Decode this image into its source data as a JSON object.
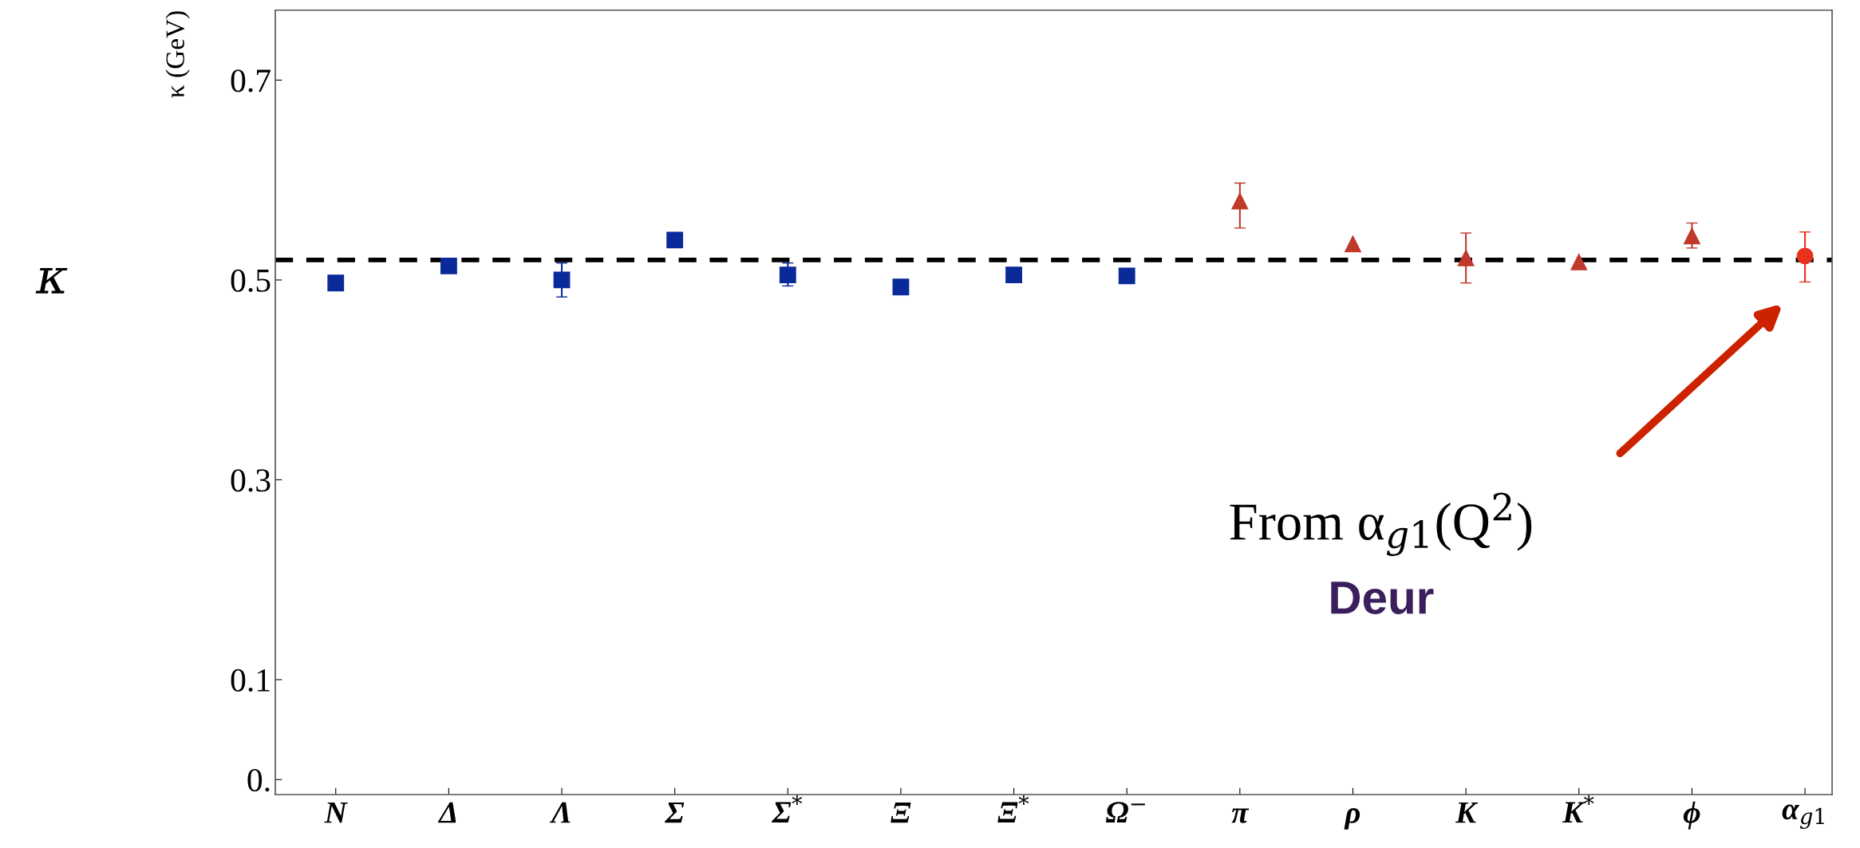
{
  "chart_data": {
    "type": "scatter",
    "ylabel": "κ (GeV)",
    "categories": [
      "N",
      "Δ",
      "Λ",
      "Σ",
      "Σ$^{*}$",
      "Ξ",
      "Ξ$^{*}$",
      "Ω$^{−}$",
      "π",
      "ρ",
      "K",
      "K$^{*}$",
      "ϕ",
      "α$_{g1}$"
    ],
    "series": [
      {
        "color": "#0a2a9a",
        "marker": "square",
        "values": [
          0.497,
          0.514,
          0.5,
          0.54,
          0.505,
          0.493,
          0.505,
          0.504,
          null,
          null,
          null,
          null,
          null,
          null
        ],
        "errors": [
          null,
          null,
          [
            0.483,
            0.517
          ],
          [
            0.533,
            0.547
          ],
          [
            0.494,
            0.517
          ],
          null,
          null,
          null,
          null,
          null,
          null,
          null,
          null,
          null
        ]
      },
      {
        "color": "#c0392b",
        "marker": "triangle",
        "values": [
          null,
          null,
          null,
          null,
          null,
          null,
          null,
          null,
          0.579,
          0.536,
          0.522,
          0.518,
          0.544,
          null
        ],
        "errors": [
          null,
          null,
          null,
          null,
          null,
          null,
          null,
          null,
          [
            0.552,
            0.597
          ],
          null,
          [
            0.497,
            0.547
          ],
          null,
          [
            0.532,
            0.557
          ],
          null
        ]
      },
      {
        "color": "#e8321e",
        "marker": "circle",
        "values": [
          null,
          null,
          null,
          null,
          null,
          null,
          null,
          null,
          null,
          null,
          null,
          null,
          null,
          0.524
        ],
        "errors": [
          null,
          null,
          null,
          null,
          null,
          null,
          null,
          null,
          null,
          null,
          null,
          null,
          null,
          [
            0.498,
            0.548
          ]
        ]
      }
    ],
    "ylim": [
      -0.015,
      0.77
    ],
    "yticks": [
      {
        "value": 0,
        "label": "0."
      },
      0.1,
      0.3,
      0.5,
      0.7
    ],
    "ref_lines": [
      {
        "axis": "y",
        "value": 0.52,
        "color": "#000000",
        "line_style": "dashed"
      }
    ],
    "annotations": [
      "κ",
      "From α$_{g1}$(Q$^{2}$)",
      "Deur"
    ],
    "grid": false
  }
}
